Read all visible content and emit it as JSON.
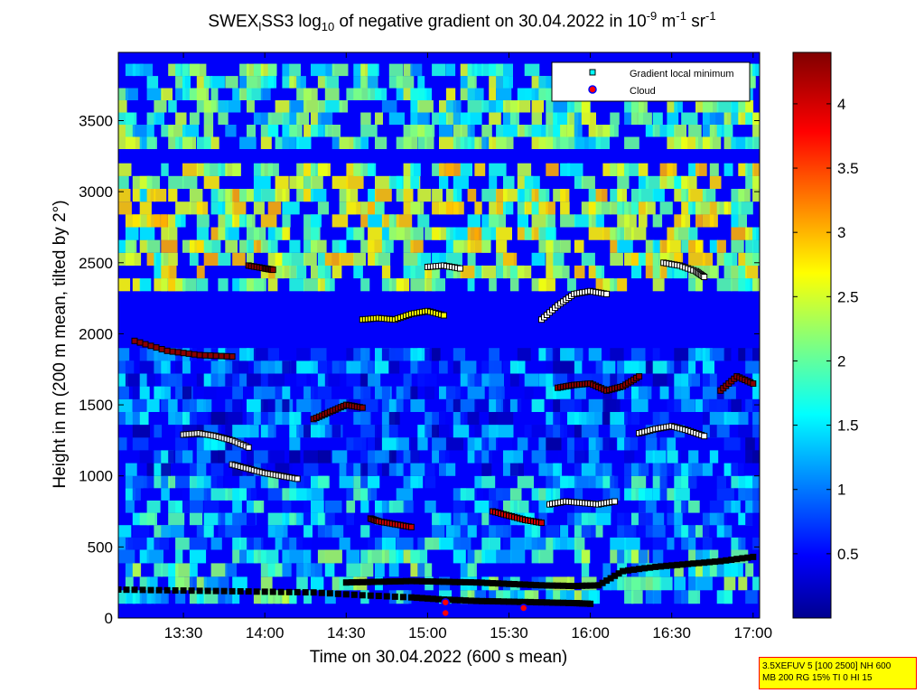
{
  "chart_data": {
    "type": "heatmap",
    "title_parts": {
      "prefix": "SWEX",
      "sub1": "l",
      "mid": "SS3 log",
      "sub2": "10",
      "text": " of negative gradient on 30.04.2022 in 10",
      "sup1": "-9",
      "unit1": " m",
      "sup2": "-1",
      "unit2": " sr",
      "sup3": "-1"
    },
    "xlabel": "Time on 30.04.2022 (600 s mean)",
    "ylabel": "Height in m (200 m mean, tilted by 2°)",
    "x_ticks": [
      "13:30",
      "14:00",
      "14:30",
      "15:00",
      "15:30",
      "16:00",
      "16:30",
      "17:00"
    ],
    "x_tick_values": [
      13.5,
      14.0,
      14.5,
      15.0,
      15.5,
      16.0,
      16.5,
      17.0
    ],
    "xlim": [
      13.1,
      17.04
    ],
    "y_ticks": [
      "0",
      "500",
      "1000",
      "1500",
      "2000",
      "2500",
      "3000",
      "3500"
    ],
    "y_tick_values": [
      0,
      500,
      1000,
      1500,
      2000,
      2500,
      3000,
      3500
    ],
    "ylim": [
      0,
      3980
    ],
    "colorbar": {
      "ticks": [
        "0.5",
        "1",
        "1.5",
        "2",
        "2.5",
        "3",
        "3.5",
        "4"
      ],
      "tick_values": [
        0.5,
        1.0,
        1.5,
        2.0,
        2.5,
        3.0,
        3.5,
        4.0
      ],
      "range": [
        0.0,
        4.4
      ],
      "colormap": "jet"
    },
    "legend": {
      "placement": "top-right",
      "entries": [
        {
          "label": "Gradient local minimum",
          "marker": "square",
          "color": "#00ffff"
        },
        {
          "label": "Cloud",
          "marker": "circle",
          "color": "#ff0000",
          "edge": "#0000ff"
        }
      ]
    },
    "layers": [
      {
        "name": "surface",
        "y0": 100,
        "y1": 480,
        "value": 1.4
      },
      {
        "name": "lower",
        "y0": 480,
        "y1": 1000,
        "value": 1.0
      },
      {
        "name": "mid",
        "y0": 1000,
        "y1": 1900,
        "value": 0.6
      },
      {
        "name": "upper",
        "y0": 2300,
        "y1": 3200,
        "value": 2.0
      },
      {
        "name": "top",
        "y0": 3300,
        "y1": 3900,
        "value": 1.6
      }
    ],
    "minima_tracks": [
      {
        "x": [
          13.1,
          13.4,
          13.7,
          14.0,
          14.3,
          14.6,
          14.9,
          15.1,
          15.3,
          15.5,
          15.7,
          15.9,
          16.0
        ],
        "y": [
          200,
          195,
          190,
          185,
          180,
          160,
          145,
          130,
          120,
          115,
          110,
          105,
          100
        ],
        "color": "#000000"
      },
      {
        "x": [
          14.5,
          14.7,
          14.9,
          15.1,
          15.3,
          15.5,
          15.7,
          15.9,
          16.05,
          16.2,
          16.4,
          16.6,
          16.8,
          17.0
        ],
        "y": [
          250,
          255,
          260,
          255,
          250,
          240,
          230,
          225,
          230,
          330,
          360,
          380,
          400,
          430
        ],
        "color": "#000000"
      },
      {
        "x": [
          13.2,
          13.4,
          13.6,
          13.8
        ],
        "y": [
          1950,
          1880,
          1850,
          1840
        ],
        "color": "#8b0000"
      },
      {
        "x": [
          13.5,
          13.6,
          13.7,
          13.8,
          13.9
        ],
        "y": [
          1290,
          1300,
          1280,
          1250,
          1200
        ],
        "color": "#ffffff"
      },
      {
        "x": [
          13.8,
          13.9,
          14.0,
          14.1,
          14.2
        ],
        "y": [
          1080,
          1050,
          1020,
          1000,
          980
        ],
        "color": "#ffffff"
      },
      {
        "x": [
          14.6,
          14.7,
          14.8,
          14.9,
          15.0,
          15.1
        ],
        "y": [
          2100,
          2110,
          2100,
          2140,
          2160,
          2130
        ],
        "color": "#ffff00"
      },
      {
        "x": [
          15.0,
          15.1,
          15.2
        ],
        "y": [
          2470,
          2480,
          2460
        ],
        "color": "#ffffff"
      },
      {
        "x": [
          14.65,
          14.7,
          14.8,
          14.9
        ],
        "y": [
          700,
          680,
          660,
          640
        ],
        "color": "#cc0000"
      },
      {
        "x": [
          15.4,
          15.5,
          15.6,
          15.7
        ],
        "y": [
          750,
          720,
          690,
          670
        ],
        "color": "#cc0000"
      },
      {
        "x": [
          15.75,
          15.85,
          15.95,
          16.05,
          16.15
        ],
        "y": [
          800,
          820,
          810,
          800,
          820
        ],
        "color": "#ffffff"
      },
      {
        "x": [
          15.8,
          15.9,
          16.0,
          16.1,
          16.2,
          16.3
        ],
        "y": [
          1620,
          1640,
          1650,
          1600,
          1630,
          1700
        ],
        "color": "#8b0000"
      },
      {
        "x": [
          16.3,
          16.4,
          16.5,
          16.6,
          16.7
        ],
        "y": [
          1300,
          1330,
          1350,
          1320,
          1280
        ],
        "color": "#ffffff"
      },
      {
        "x": [
          16.45,
          16.55,
          16.65,
          16.7
        ],
        "y": [
          2500,
          2480,
          2440,
          2400
        ],
        "color": "#ffffff"
      },
      {
        "x": [
          16.8,
          16.9,
          17.0
        ],
        "y": [
          1600,
          1700,
          1650
        ],
        "color": "#8b0000"
      },
      {
        "x": [
          14.3,
          14.4,
          14.5,
          14.6
        ],
        "y": [
          1400,
          1450,
          1500,
          1480
        ],
        "color": "#8b0000"
      },
      {
        "x": [
          13.9,
          14.0,
          14.05
        ],
        "y": [
          2480,
          2460,
          2450
        ],
        "color": "#8b0000"
      },
      {
        "x": [
          15.7,
          15.8,
          15.9,
          16.0,
          16.1
        ],
        "y": [
          2100,
          2200,
          2280,
          2300,
          2280
        ],
        "color": "#ffffff"
      }
    ],
    "clouds": [
      {
        "x": 15.11,
        "y": 110
      },
      {
        "x": 15.11,
        "y": 35
      },
      {
        "x": 15.59,
        "y": 70
      }
    ]
  },
  "info_box": {
    "line1": "3.5XEFUV 5 [100 2500] NH 600",
    "line2": "MB 200 RG 15% TI 0 HI 15"
  }
}
